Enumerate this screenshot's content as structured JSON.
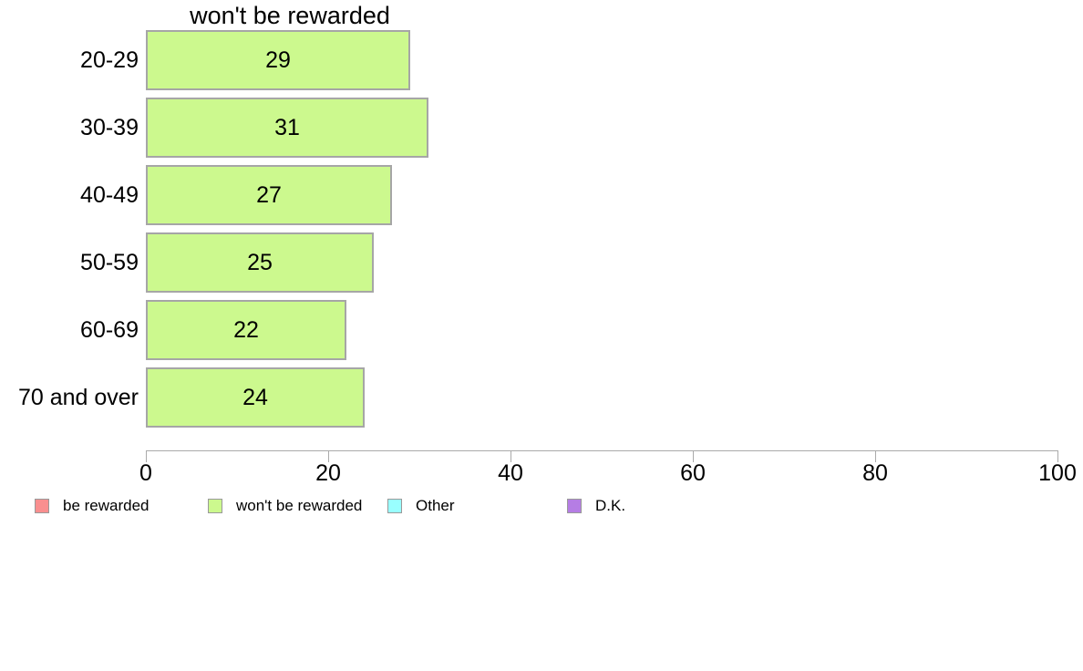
{
  "chart_data": {
    "type": "bar",
    "orientation": "horizontal",
    "title": "won't be rewarded",
    "categories": [
      "20-29",
      "30-39",
      "40-49",
      "50-59",
      "60-69",
      "70 and over"
    ],
    "values": [
      29,
      31,
      27,
      25,
      22,
      24
    ],
    "value_labels_shown": true,
    "xlabel": "",
    "ylabel": "",
    "xlim": [
      0,
      100
    ],
    "xticks": [
      0,
      20,
      40,
      60,
      80,
      100
    ],
    "grid": false,
    "bar_color": "#ccf98e",
    "bar_border_color": "#a6a6a6",
    "axis_color": "#aaaaaa",
    "text_color": "#000000",
    "legend_position": "bottom",
    "legend": [
      {
        "label": "be rewarded",
        "color": "#f98f8f"
      },
      {
        "label": "won't be rewarded",
        "color": "#ccf98e"
      },
      {
        "label": "Other",
        "color": "#99ffff"
      },
      {
        "label": "D.K.",
        "color": "#b57de4"
      }
    ]
  }
}
